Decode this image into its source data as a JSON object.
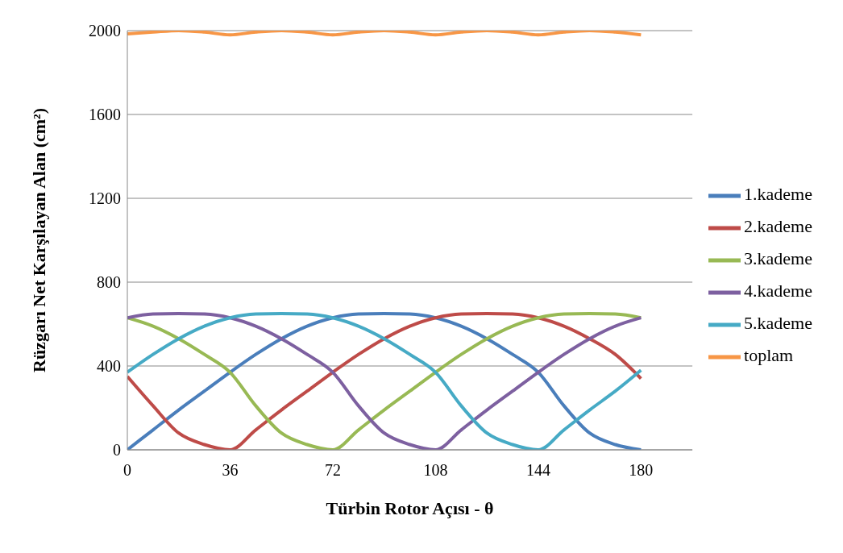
{
  "chart_data": {
    "type": "line",
    "xlabel": "Türbin Rotor Açısı - θ",
    "ylabel": "Rüzgarı Net Karşılayan Alan (cm²)",
    "x": [
      0,
      9,
      18,
      27,
      36,
      45,
      54,
      63,
      72,
      81,
      90,
      99,
      108,
      117,
      126,
      135,
      144,
      153,
      162,
      171,
      180
    ],
    "xlim": [
      0,
      198
    ],
    "xticks": [
      0,
      36,
      72,
      108,
      144,
      180
    ],
    "ylim": [
      0,
      2000
    ],
    "yticks": [
      0,
      400,
      800,
      1200,
      1600,
      2000
    ],
    "grid": "y",
    "legend": "right",
    "marker": "none",
    "line_style": "solid",
    "series": [
      {
        "name": "1.kademe",
        "color": "#4a7ebb",
        "values": [
          0,
          95,
          190,
          280,
          370,
          455,
          530,
          590,
          630,
          648,
          650,
          648,
          630,
          590,
          530,
          455,
          370,
          210,
          80,
          25,
          0
        ]
      },
      {
        "name": "2.kademe",
        "color": "#be4b48",
        "values": [
          350,
          210,
          80,
          25,
          0,
          95,
          190,
          280,
          370,
          455,
          530,
          590,
          630,
          648,
          650,
          648,
          630,
          590,
          530,
          455,
          340
        ]
      },
      {
        "name": "3.kademe",
        "color": "#98b954",
        "values": [
          630,
          590,
          530,
          455,
          370,
          210,
          80,
          25,
          0,
          95,
          190,
          280,
          370,
          455,
          530,
          590,
          630,
          648,
          650,
          648,
          630
        ]
      },
      {
        "name": "4.kademe",
        "color": "#7d60a0",
        "values": [
          630,
          648,
          650,
          648,
          630,
          590,
          530,
          455,
          370,
          210,
          80,
          25,
          0,
          95,
          190,
          280,
          370,
          455,
          530,
          590,
          630
        ]
      },
      {
        "name": "5.kademe",
        "color": "#46aac5",
        "values": [
          370,
          455,
          530,
          590,
          630,
          648,
          650,
          648,
          630,
          590,
          530,
          455,
          370,
          210,
          80,
          25,
          0,
          95,
          190,
          280,
          380
        ]
      },
      {
        "name": "toplam",
        "color": "#f79646",
        "values": [
          1985,
          1993,
          2000,
          1993,
          1980,
          1993,
          2000,
          1993,
          1980,
          1993,
          2000,
          1993,
          1980,
          1993,
          2000,
          1993,
          1980,
          1993,
          2000,
          1993,
          1980
        ]
      }
    ]
  }
}
